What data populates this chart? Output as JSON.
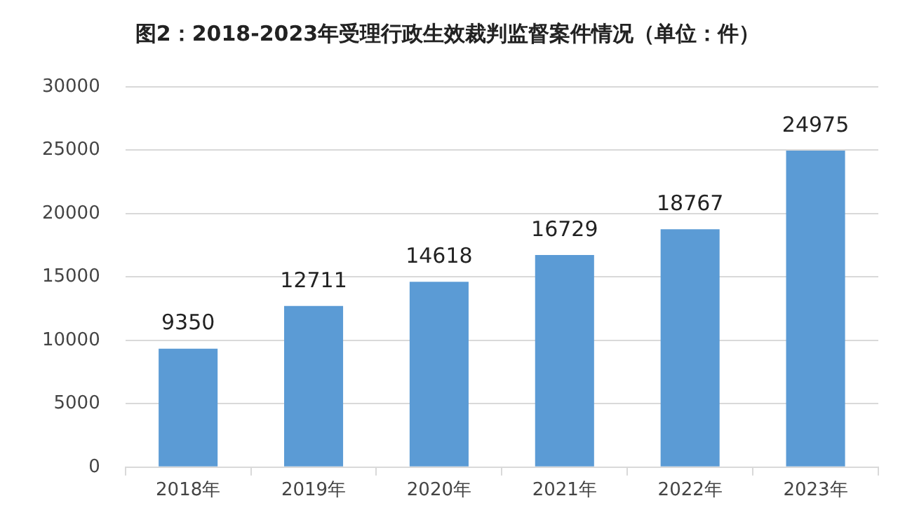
{
  "chart_data": {
    "type": "bar",
    "title": "图2：2018-2023年受理行政生效裁判监督案件情况（单位：件）",
    "categories": [
      "2018年",
      "2019年",
      "2020年",
      "2021年",
      "2022年",
      "2023年"
    ],
    "values": [
      9350,
      12711,
      14618,
      16729,
      18767,
      24975
    ],
    "color": "#5b9bd5",
    "ylim": [
      0,
      30000
    ],
    "yticks": [
      0,
      5000,
      10000,
      15000,
      20000,
      25000,
      30000
    ],
    "grid": "y",
    "data_labels": true
  }
}
